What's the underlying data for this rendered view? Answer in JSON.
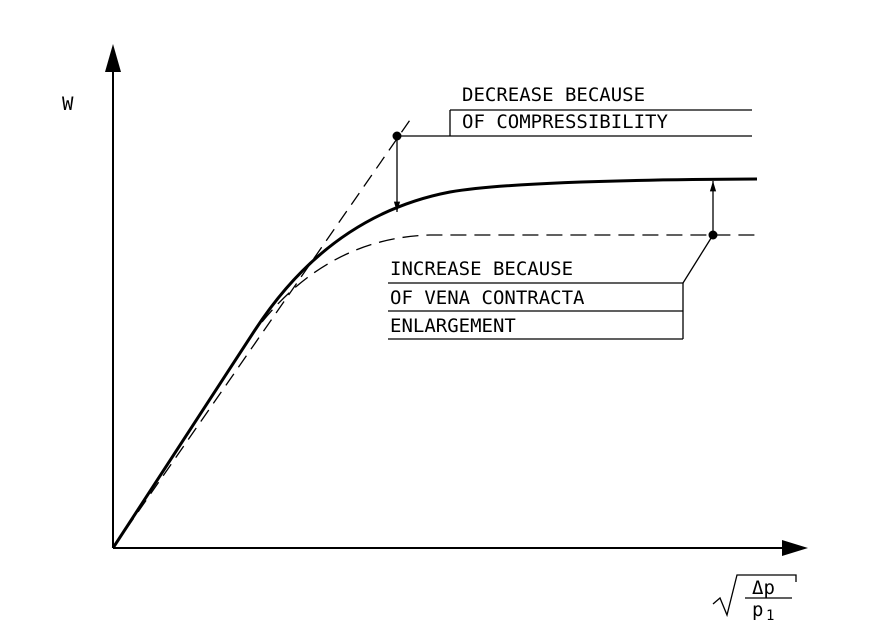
{
  "y_axis_label": "W",
  "x_axis_label": {
    "numerator": "Δp",
    "denominator": "p",
    "subscript": "1"
  },
  "annotations": {
    "decrease": [
      "DECREASE BECAUSE",
      "OF COMPRESSIBILITY"
    ],
    "increase": [
      "INCREASE BECAUSE",
      "OF VENA CONTRACTA",
      "ENLARGEMENT"
    ]
  }
}
